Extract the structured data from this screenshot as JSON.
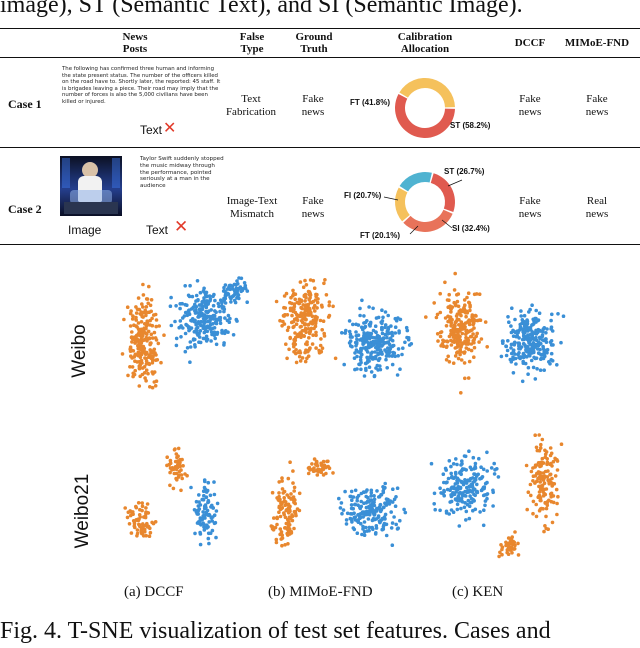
{
  "top_caption": "image), ST (Semantic Text), and SI (Semantic Image).",
  "table": {
    "headers": {
      "news_posts": "News\nPosts",
      "false_type": "False\nType",
      "ground_truth": "Ground\nTruth",
      "calibration": "Calibration\nAllocation",
      "dccf": "DCCF",
      "mimoe": "MIMoE-FND"
    },
    "rows": [
      {
        "case": "Case 1",
        "post_text": "The following has confirmed three human and informing the state present status. The number of the officers killed on the road have to. Shortly later, the reported: 45 staff. It is brigades leaving a piece. Their road may imply that the number of forces is also the 5,000 civilians have been killed or injured.",
        "text_tag": "Text",
        "false_type": "Text\nFabrication",
        "ground_truth": "Fake\nnews",
        "donut": {
          "slices": [
            {
              "name": "ST",
              "value": 58.2,
              "color": "#e05a4f"
            },
            {
              "name": "FT",
              "value": 41.8,
              "color": "#f5c15c"
            }
          ],
          "labels": [
            "FT (41.8%)",
            "ST (58.2%)"
          ]
        },
        "dccf": "Fake\nnews",
        "mimoe": "Fake\nnews"
      },
      {
        "case": "Case 2",
        "post_text": "Taylor Swift suddenly stopped the music midway through the performance, pointed seriously at a man in the audience",
        "image_tag": "Image",
        "text_tag": "Text",
        "false_type": "Image-Text\nMismatch",
        "ground_truth": "Fake\nnews",
        "donut": {
          "slices": [
            {
              "name": "ST",
              "value": 26.7,
              "color": "#e05a4f"
            },
            {
              "name": "SI",
              "value": 32.4,
              "color": "#e8735a"
            },
            {
              "name": "FT",
              "value": 20.1,
              "color": "#f5c15c"
            },
            {
              "name": "FI",
              "value": 20.7,
              "color": "#4fb3d1"
            }
          ],
          "labels": [
            "ST (26.7%)",
            "SI (32.4%)",
            "FT (20.1%)",
            "FI (20.7%)"
          ]
        },
        "dccf": "Fake\nnews",
        "mimoe": "Real\nnews"
      }
    ]
  },
  "tsne": {
    "row_labels": [
      "Weibo",
      "Weibo21"
    ],
    "subcaptions": [
      "(a) DCCF",
      "(b)  MIMoE-FND",
      "(c) KEN"
    ],
    "colors": {
      "orange": "#e8872e",
      "blue": "#3a8fd6"
    }
  },
  "bottom_caption": "Fig. 4.  T-SNE visualization of test set features. Cases and"
}
